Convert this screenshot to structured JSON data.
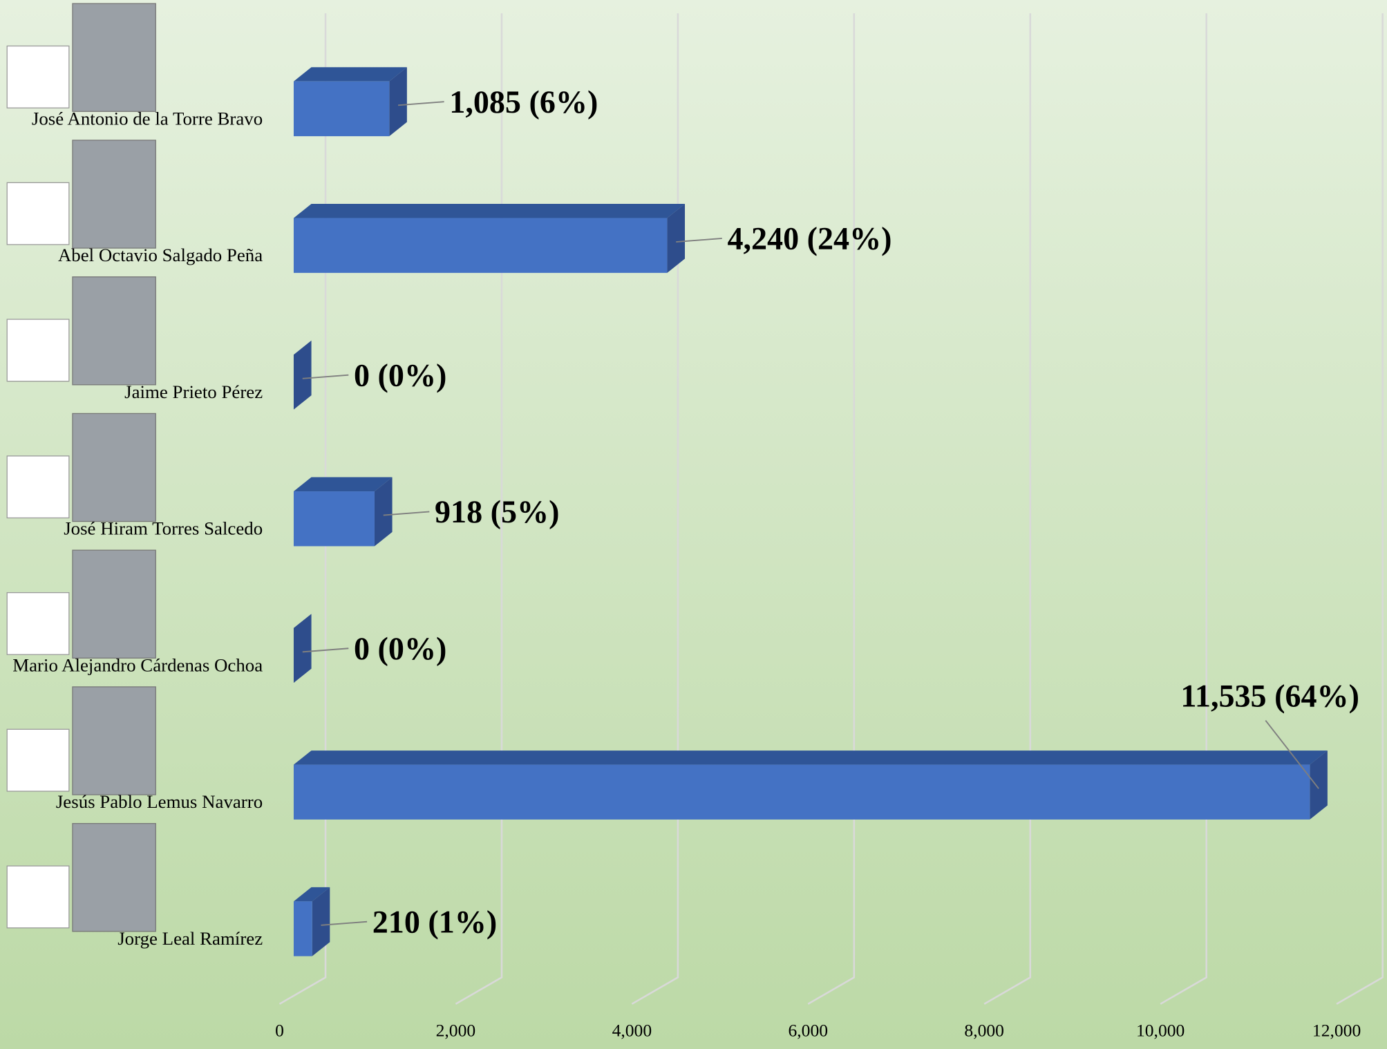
{
  "chart_data": {
    "type": "bar",
    "orientation": "horizontal",
    "categories": [
      "José Antonio de la Torre Bravo",
      "Abel Octavio Salgado Peña",
      "Jaime Prieto Pérez",
      "José Hiram Torres Salcedo",
      "Mario Alejandro Cárdenas Ochoa",
      "Jesús Pablo Lemus Navarro",
      "Jorge Leal Ramírez"
    ],
    "values": [
      1085,
      4240,
      0,
      918,
      0,
      11535,
      210
    ],
    "value_labels": [
      "1,085 (6%)",
      "4,240 (24%)",
      "0 (0%)",
      "918 (5%)",
      "0 (0%)",
      "11,535 (64%)",
      "210 (1%)"
    ],
    "color": "#4472c4",
    "xlim": [
      0,
      12000
    ],
    "xticks": [
      0,
      {
        "value": 2000,
        "label": "2,000"
      },
      {
        "value": 4000,
        "label": "4,000"
      },
      {
        "value": 6000,
        "label": "6,000"
      },
      {
        "value": 8000,
        "label": "8,000"
      },
      {
        "value": 10000,
        "label": "10,000"
      },
      {
        "value": 12000,
        "label": "12,000"
      }
    ],
    "grid": true
  }
}
